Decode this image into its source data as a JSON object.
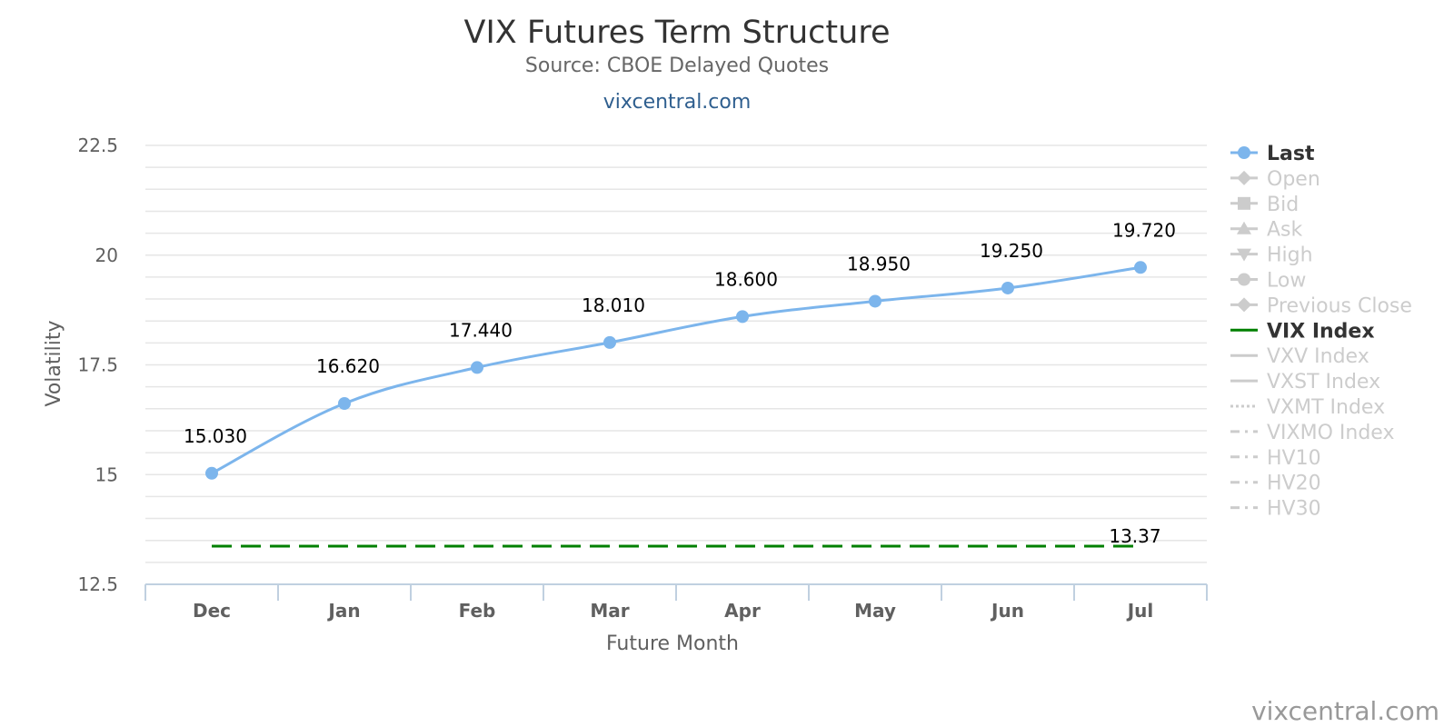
{
  "chart_data": {
    "type": "line",
    "title": "VIX Futures Term Structure",
    "subtitle": "Source: CBOE Delayed Quotes",
    "site_link": "vixcentral.com",
    "credit": "vixcentral.com",
    "xlabel": "Future Month",
    "ylabel": "Volatility",
    "categories": [
      "Dec",
      "Jan",
      "Feb",
      "Mar",
      "Apr",
      "May",
      "Jun",
      "Jul"
    ],
    "ylim": [
      12.5,
      22.5
    ],
    "yticks": [
      "12.5",
      "15",
      "17.5",
      "20",
      "22.5"
    ],
    "grid": true,
    "legend_position": "right",
    "series": [
      {
        "name": "Last",
        "values": [
          15.03,
          16.62,
          17.44,
          18.01,
          18.6,
          18.95,
          19.25,
          19.72
        ],
        "labels": [
          "15.030",
          "16.620",
          "17.440",
          "18.010",
          "18.600",
          "18.950",
          "19.250",
          "19.720"
        ],
        "color": "#7cb5ec",
        "style": "solid-markers"
      },
      {
        "name": "VIX Index",
        "value": 13.37,
        "label": "13.37",
        "color": "#008000",
        "style": "dashed"
      }
    ],
    "legend": [
      {
        "name": "Last",
        "symbol": "circle",
        "active": true,
        "color": "#7cb5ec"
      },
      {
        "name": "Open",
        "symbol": "diamond",
        "active": false
      },
      {
        "name": "Bid",
        "symbol": "square",
        "active": false
      },
      {
        "name": "Ask",
        "symbol": "triangle",
        "active": false
      },
      {
        "name": "High",
        "symbol": "triangle-down",
        "active": false
      },
      {
        "name": "Low",
        "symbol": "circle",
        "active": false
      },
      {
        "name": "Previous Close",
        "symbol": "diamond",
        "active": false
      },
      {
        "name": "VIX Index",
        "symbol": "line",
        "active": true,
        "color": "#008000"
      },
      {
        "name": "VXV Index",
        "symbol": "line",
        "active": false
      },
      {
        "name": "VXST Index",
        "symbol": "line",
        "active": false
      },
      {
        "name": "VXMT Index",
        "symbol": "dotted",
        "active": false
      },
      {
        "name": "VIXMO Index",
        "symbol": "dashdot",
        "active": false
      },
      {
        "name": "HV10",
        "symbol": "dashdot",
        "active": false
      },
      {
        "name": "HV20",
        "symbol": "dashdot",
        "active": false
      },
      {
        "name": "HV30",
        "symbol": "dashdot",
        "active": false
      }
    ],
    "colors": {
      "inactive": "#cccccc",
      "active_text": "#333333",
      "grid": "#e6e6e6",
      "axis": "#c0d0e0"
    }
  }
}
